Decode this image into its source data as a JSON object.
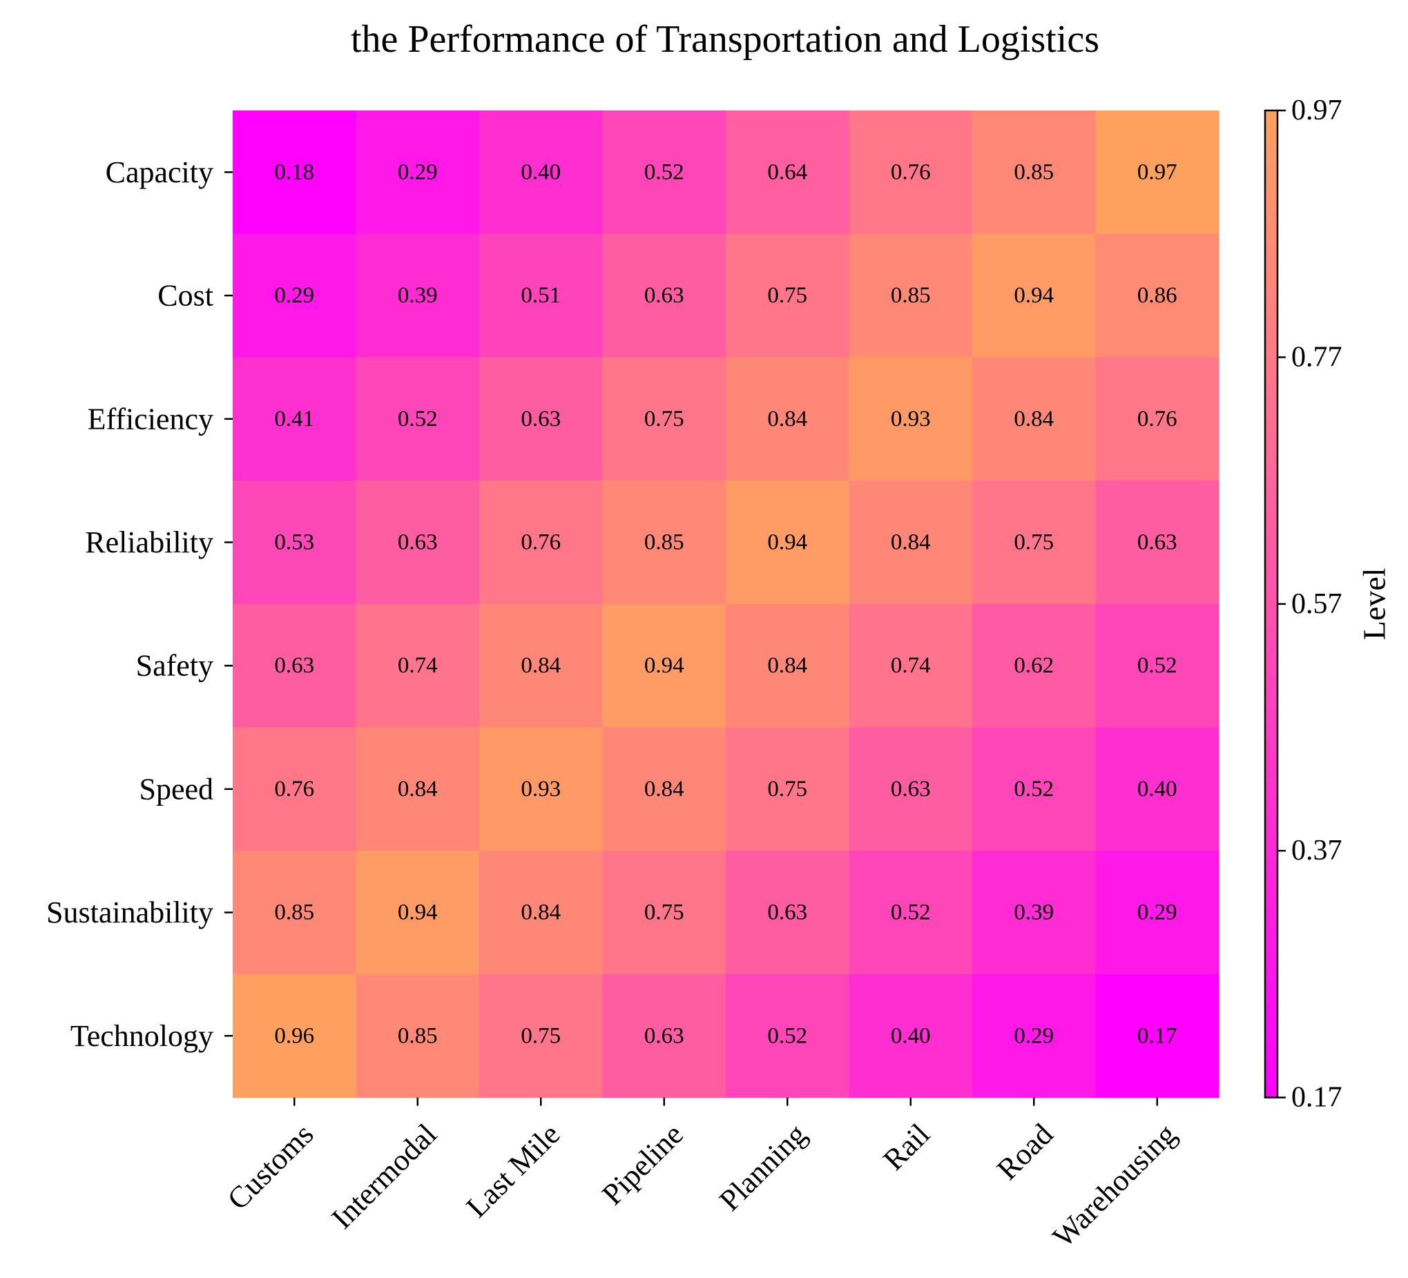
{
  "chart_data": {
    "type": "heatmap",
    "title": "the Performance of Transportation and Logistics",
    "x_categories": [
      "Customs",
      "Intermodal",
      "Last Mile",
      "Pipeline",
      "Planning",
      "Rail",
      "Road",
      "Warehousing"
    ],
    "y_categories": [
      "Capacity",
      "Cost",
      "Efficiency",
      "Reliability",
      "Safety",
      "Speed",
      "Sustainability",
      "Technology"
    ],
    "values": [
      [
        0.18,
        0.29,
        0.4,
        0.52,
        0.64,
        0.76,
        0.85,
        0.97
      ],
      [
        0.29,
        0.39,
        0.51,
        0.63,
        0.75,
        0.85,
        0.94,
        0.86
      ],
      [
        0.41,
        0.52,
        0.63,
        0.75,
        0.84,
        0.93,
        0.84,
        0.76
      ],
      [
        0.53,
        0.63,
        0.76,
        0.85,
        0.94,
        0.84,
        0.75,
        0.63
      ],
      [
        0.63,
        0.74,
        0.84,
        0.94,
        0.84,
        0.74,
        0.62,
        0.52
      ],
      [
        0.76,
        0.84,
        0.93,
        0.84,
        0.75,
        0.63,
        0.52,
        0.4
      ],
      [
        0.85,
        0.94,
        0.84,
        0.75,
        0.63,
        0.52,
        0.39,
        0.29
      ],
      [
        0.96,
        0.85,
        0.75,
        0.63,
        0.52,
        0.4,
        0.29,
        0.17
      ]
    ],
    "value_format": "0.00",
    "colormap": "spring",
    "colormap_range_hex": [
      "#ff00ff",
      "#ffa15e"
    ],
    "colorbar": {
      "label": "Level",
      "range": [
        0.17,
        0.97
      ],
      "ticks": [
        "0.17",
        "0.37",
        "0.57",
        "0.77",
        "0.97"
      ]
    }
  }
}
